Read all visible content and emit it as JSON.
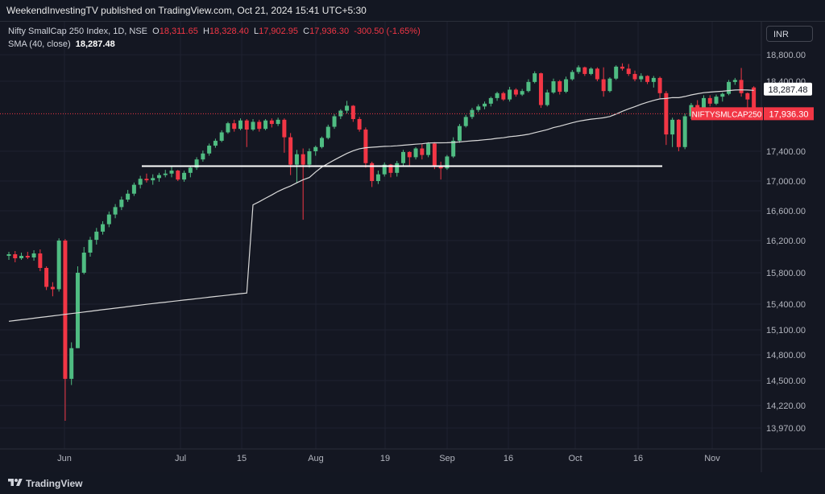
{
  "header": {
    "published": "WeekendInvestingTV published on TradingView.com, Oct 21, 2024 15:41 UTC+5:30"
  },
  "legend": {
    "title": "Nifty SmallCap 250 Index, 1D, NSE",
    "o_label": "O",
    "o": "18,311.65",
    "h_label": "H",
    "h": "18,328.40",
    "l_label": "L",
    "l": "17,902.95",
    "c_label": "C",
    "c": "17,936.30",
    "change": "-300.50 (-1.65%)",
    "sma_label": "SMA (40, close)",
    "sma_value": "18,287.48"
  },
  "currency_button": "INR",
  "footer": {
    "brand": "TradingView"
  },
  "colors": {
    "up": "#4fbc82",
    "down": "#f23645",
    "sma": "#d9d9d9",
    "background": "#131722",
    "grid": "#1e2230",
    "hline": "#ffffff"
  },
  "chart_data": {
    "type": "candlestick",
    "symbol": "NIFTYSMLCAP250",
    "y_axis_ticks": [
      "18,800.00",
      "18,400.00",
      "17,400.00",
      "17,000.00",
      "16,600.00",
      "16,200.00",
      "15,800.00",
      "15,400.00",
      "15,100.00",
      "14,800.00",
      "14,500.00",
      "14,220.00",
      "13,970.00"
    ],
    "x_axis_ticks": [
      "Jun",
      "Jul",
      "15",
      "Aug",
      "19",
      "Sep",
      "16",
      "Oct",
      "16",
      "Nov"
    ],
    "price_labels": [
      {
        "name": "SMA (40, close)",
        "value": "18,287.48",
        "style": "sma"
      },
      {
        "name": "NIFTYSMLCAP250",
        "value": "17,936.30",
        "style": "last"
      }
    ],
    "horizontal_line": {
      "value": 17200
    },
    "candles": [
      [
        16010,
        16060,
        15960,
        16030
      ],
      [
        16030,
        16070,
        15930,
        15980
      ],
      [
        15980,
        16050,
        15960,
        16010
      ],
      [
        16010,
        16060,
        15970,
        15990
      ],
      [
        15990,
        16080,
        15950,
        16040
      ],
      [
        16040,
        16090,
        15820,
        15860
      ],
      [
        15860,
        15880,
        15580,
        15620
      ],
      [
        15620,
        15680,
        15500,
        15590
      ],
      [
        15590,
        16230,
        15560,
        16200
      ],
      [
        16200,
        16220,
        14050,
        14520
      ],
      [
        14520,
        14950,
        14450,
        14880
      ],
      [
        14880,
        15880,
        14880,
        15800
      ],
      [
        15800,
        16120,
        15780,
        16050
      ],
      [
        16050,
        16250,
        16000,
        16210
      ],
      [
        16210,
        16370,
        16150,
        16320
      ],
      [
        16320,
        16460,
        16280,
        16420
      ],
      [
        16420,
        16590,
        16380,
        16550
      ],
      [
        16550,
        16690,
        16500,
        16650
      ],
      [
        16650,
        16790,
        16610,
        16750
      ],
      [
        16750,
        16880,
        16720,
        16830
      ],
      [
        16830,
        16980,
        16800,
        16950
      ],
      [
        16950,
        17070,
        16900,
        17030
      ],
      [
        17030,
        17100,
        16980,
        17010
      ],
      [
        17010,
        17090,
        16950,
        17040
      ],
      [
        17040,
        17110,
        16990,
        17080
      ],
      [
        17080,
        17150,
        17050,
        17100
      ],
      [
        17100,
        17190,
        17050,
        17140
      ],
      [
        17140,
        17150,
        17000,
        17020
      ],
      [
        17020,
        17140,
        16990,
        17110
      ],
      [
        17110,
        17200,
        17050,
        17180
      ],
      [
        17180,
        17320,
        17150,
        17290
      ],
      [
        17290,
        17410,
        17260,
        17370
      ],
      [
        17370,
        17510,
        17340,
        17480
      ],
      [
        17480,
        17580,
        17450,
        17550
      ],
      [
        17550,
        17700,
        17530,
        17670
      ],
      [
        17670,
        17820,
        17650,
        17800
      ],
      [
        17800,
        17850,
        17680,
        17720
      ],
      [
        17720,
        17870,
        17700,
        17840
      ],
      [
        17840,
        17860,
        17460,
        17710
      ],
      [
        17710,
        17860,
        17690,
        17820
      ],
      [
        17820,
        17850,
        17680,
        17720
      ],
      [
        17720,
        17860,
        17700,
        17840
      ],
      [
        17840,
        17870,
        17740,
        17790
      ],
      [
        17790,
        17880,
        17760,
        17850
      ],
      [
        17850,
        17870,
        17380,
        17600
      ],
      [
        17600,
        17660,
        17080,
        17220
      ],
      [
        17220,
        17420,
        16970,
        17360
      ],
      [
        17360,
        17440,
        16480,
        17220
      ],
      [
        17220,
        17440,
        17180,
        17400
      ],
      [
        17400,
        17480,
        17340,
        17460
      ],
      [
        17460,
        17610,
        17440,
        17590
      ],
      [
        17590,
        17780,
        17570,
        17750
      ],
      [
        17750,
        17930,
        17720,
        17900
      ],
      [
        17900,
        18000,
        17860,
        17980
      ],
      [
        17980,
        18120,
        17940,
        18050
      ],
      [
        18050,
        18060,
        17820,
        17860
      ],
      [
        17860,
        17890,
        17680,
        17710
      ],
      [
        17710,
        17740,
        17180,
        17240
      ],
      [
        17240,
        17260,
        16920,
        17000
      ],
      [
        17000,
        17140,
        16960,
        17090
      ],
      [
        17090,
        17250,
        17060,
        17220
      ],
      [
        17220,
        17230,
        17050,
        17110
      ],
      [
        17110,
        17270,
        17060,
        17240
      ],
      [
        17240,
        17420,
        17210,
        17390
      ],
      [
        17390,
        17400,
        17200,
        17320
      ],
      [
        17320,
        17460,
        17290,
        17440
      ],
      [
        17440,
        17500,
        17290,
        17350
      ],
      [
        17350,
        17530,
        17320,
        17510
      ],
      [
        17510,
        17530,
        17160,
        17190
      ],
      [
        17190,
        17260,
        17020,
        17170
      ],
      [
        17170,
        17350,
        17150,
        17330
      ],
      [
        17330,
        17600,
        17310,
        17550
      ],
      [
        17550,
        17790,
        17520,
        17760
      ],
      [
        17760,
        17920,
        17740,
        17890
      ],
      [
        17890,
        18020,
        17860,
        17990
      ],
      [
        17990,
        18070,
        17960,
        18040
      ],
      [
        18040,
        18110,
        18000,
        18080
      ],
      [
        18080,
        18180,
        18040,
        18160
      ],
      [
        18160,
        18250,
        18120,
        18230
      ],
      [
        18230,
        18250,
        18120,
        18140
      ],
      [
        18140,
        18320,
        18110,
        18280
      ],
      [
        18280,
        18300,
        18180,
        18210
      ],
      [
        18210,
        18290,
        18190,
        18260
      ],
      [
        18260,
        18430,
        18240,
        18390
      ],
      [
        18390,
        18550,
        18370,
        18520
      ],
      [
        18520,
        18530,
        18020,
        18060
      ],
      [
        18060,
        18280,
        18040,
        18240
      ],
      [
        18240,
        18440,
        18220,
        18400
      ],
      [
        18400,
        18420,
        18210,
        18250
      ],
      [
        18250,
        18470,
        18230,
        18430
      ],
      [
        18430,
        18570,
        18410,
        18540
      ],
      [
        18540,
        18640,
        18510,
        18610
      ],
      [
        18610,
        18620,
        18480,
        18510
      ],
      [
        18510,
        18610,
        18490,
        18590
      ],
      [
        18590,
        18610,
        18400,
        18430
      ],
      [
        18430,
        18610,
        18180,
        18260
      ],
      [
        18260,
        18460,
        18240,
        18440
      ],
      [
        18440,
        18640,
        18420,
        18620
      ],
      [
        18620,
        18670,
        18560,
        18590
      ],
      [
        18590,
        18660,
        18480,
        18510
      ],
      [
        18510,
        18560,
        18400,
        18430
      ],
      [
        18430,
        18520,
        18390,
        18480
      ],
      [
        18480,
        18490,
        18360,
        18390
      ],
      [
        18390,
        18480,
        18310,
        18450
      ],
      [
        18450,
        18470,
        18160,
        18230
      ],
      [
        18230,
        18260,
        17490,
        17640
      ],
      [
        17640,
        17880,
        17460,
        17850
      ],
      [
        17850,
        17860,
        17400,
        17460
      ],
      [
        17460,
        17940,
        17430,
        17900
      ],
      [
        17900,
        18090,
        17860,
        18060
      ],
      [
        18060,
        18130,
        17960,
        18000
      ],
      [
        18000,
        18200,
        17980,
        18160
      ],
      [
        18160,
        18200,
        18040,
        18080
      ],
      [
        18080,
        18210,
        18060,
        18180
      ],
      [
        18180,
        18240,
        18110,
        18220
      ],
      [
        18220,
        18420,
        18200,
        18390
      ],
      [
        18390,
        18450,
        18350,
        18420
      ],
      [
        18420,
        18600,
        18180,
        18230
      ],
      [
        18230,
        18240,
        17900,
        18140
      ],
      [
        18311.65,
        18328.4,
        17902.95,
        17936.3
      ]
    ]
  }
}
